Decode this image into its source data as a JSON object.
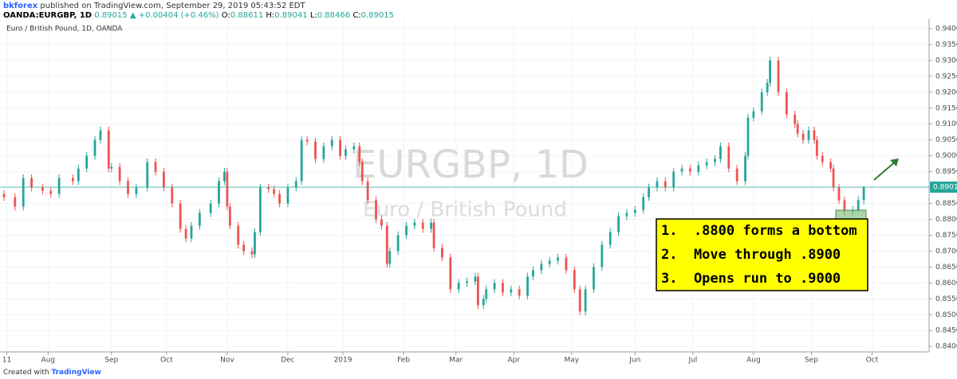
{
  "header": {
    "author": "bkforex",
    "published": "published on TradingView.com, September 29, 2019 05:43:52 EDT",
    "symbol": "OANDA:EURGBP, 1D",
    "change": "▲ +0.00404 (+0.46%)",
    "ohlc_labels": [
      "O:",
      "H:",
      "L:",
      "C:"
    ]
  },
  "footer": {
    "created": "Created with",
    "brand": "TradingView"
  },
  "chart_data": {
    "type": "candlestick",
    "title": "Euro / British Pound, 1D, OANDA",
    "watermark": "EURGBP, 1D",
    "watermark_subtitle": "Euro / British Pound",
    "annotation": [
      "1.  .8800 forms a bottom",
      "2.  Move through .8900",
      "3.  Opens run to .9000"
    ],
    "up_color": "#26a69a",
    "down_color": "#ef5350",
    "grid": true,
    "xlim": [
      -1.45,
      335.7
    ],
    "ylim": [
      0.8388,
      0.943
    ],
    "xticks": [
      {
        "value": 1,
        "label": "11"
      },
      {
        "value": 16,
        "label": "Aug"
      },
      {
        "value": 39,
        "label": "Sep"
      },
      {
        "value": 59,
        "label": "Oct"
      },
      {
        "value": 81,
        "label": "Nov"
      },
      {
        "value": 103,
        "label": "Dec"
      },
      {
        "value": 123,
        "label": "2019"
      },
      {
        "value": 145,
        "label": "Feb"
      },
      {
        "value": 164,
        "label": "Mar"
      },
      {
        "value": 185,
        "label": "Apr"
      },
      {
        "value": 206,
        "label": "May"
      },
      {
        "value": 229,
        "label": "Jun"
      },
      {
        "value": 250,
        "label": "Jul"
      },
      {
        "value": 272,
        "label": "Aug"
      },
      {
        "value": 293,
        "label": "Sep"
      },
      {
        "value": 315,
        "label": "Oct"
      }
    ],
    "yticks": [
      {
        "value": 0.84,
        "label": "0.84000"
      },
      {
        "value": 0.845,
        "label": "0.84500"
      },
      {
        "value": 0.85,
        "label": "0.85000"
      },
      {
        "value": 0.855,
        "label": "0.85500"
      },
      {
        "value": 0.86,
        "label": "0.86000"
      },
      {
        "value": 0.865,
        "label": "0.86500"
      },
      {
        "value": 0.87,
        "label": "0.87000"
      },
      {
        "value": 0.875,
        "label": "0.87500"
      },
      {
        "value": 0.88,
        "label": "0.88000"
      },
      {
        "value": 0.885,
        "label": "0.88500"
      },
      {
        "value": 0.89,
        "label": "0.89000"
      },
      {
        "value": 0.895,
        "label": "0.89500"
      },
      {
        "value": 0.9,
        "label": "0.90000"
      },
      {
        "value": 0.905,
        "label": "0.90500"
      },
      {
        "value": 0.91,
        "label": "0.91000"
      },
      {
        "value": 0.915,
        "label": "0.91500"
      },
      {
        "value": 0.92,
        "label": "0.92000"
      },
      {
        "value": 0.925,
        "label": "0.92500"
      },
      {
        "value": 0.93,
        "label": "0.93000"
      },
      {
        "value": 0.935,
        "label": "0.93500"
      },
      {
        "value": 0.94,
        "label": "0.94000"
      }
    ],
    "x": [
      0,
      4,
      7,
      10,
      14,
      17,
      20,
      25,
      27,
      30,
      33,
      35,
      38,
      39,
      42,
      45,
      48,
      52,
      55,
      58,
      61,
      64,
      66,
      68,
      71,
      75,
      78,
      80,
      81,
      82,
      85,
      87,
      90,
      91,
      93,
      96,
      98,
      100,
      103,
      106,
      108,
      110,
      113,
      116,
      119,
      122,
      124,
      127,
      129,
      130,
      132,
      135,
      137,
      139,
      140,
      143,
      146,
      149,
      152,
      155,
      156,
      159,
      162,
      165,
      168,
      171,
      172,
      174,
      175,
      178,
      181,
      184,
      187,
      190,
      192,
      195,
      198,
      201,
      204,
      207,
      209,
      211,
      214,
      217,
      220,
      223,
      226,
      229,
      232,
      234,
      237,
      240,
      243,
      246,
      249,
      252,
      255,
      258,
      260,
      263,
      266,
      269,
      270,
      272,
      275,
      277,
      278,
      281,
      284,
      287,
      288,
      290,
      292,
      294,
      295,
      297,
      300,
      301,
      303,
      305,
      308,
      310,
      312
    ],
    "open": [
      0.888,
      0.887,
      0.884,
      0.893,
      0.89,
      0.889,
      0.888,
      0.893,
      0.892,
      0.896,
      0.9,
      0.905,
      0.908,
      0.896,
      0.8965,
      0.892,
      0.888,
      0.89,
      0.898,
      0.895,
      0.89,
      0.885,
      0.877,
      0.874,
      0.878,
      0.882,
      0.885,
      0.892,
      0.895,
      0.884,
      0.878,
      0.872,
      0.87,
      0.869,
      0.876,
      0.89,
      0.8895,
      0.888,
      0.885,
      0.89,
      0.892,
      0.905,
      0.9045,
      0.899,
      0.903,
      0.905,
      0.9,
      0.902,
      0.903,
      0.898,
      0.892,
      0.886,
      0.88,
      0.878,
      0.866,
      0.87,
      0.875,
      0.878,
      0.879,
      0.877,
      0.879,
      0.871,
      0.868,
      0.858,
      0.86,
      0.8605,
      0.862,
      0.853,
      0.855,
      0.858,
      0.86,
      0.857,
      0.858,
      0.856,
      0.862,
      0.864,
      0.866,
      0.867,
      0.868,
      0.864,
      0.858,
      0.851,
      0.858,
      0.865,
      0.872,
      0.876,
      0.881,
      0.882,
      0.883,
      0.887,
      0.89,
      0.892,
      0.89,
      0.895,
      0.896,
      0.895,
      0.897,
      0.898,
      0.899,
      0.903,
      0.896,
      0.892,
      0.9,
      0.912,
      0.914,
      0.92,
      0.923,
      0.93,
      0.92,
      0.913,
      0.91,
      0.907,
      0.905,
      0.908,
      0.905,
      0.9,
      0.898,
      0.896,
      0.89,
      0.886,
      0.882,
      0.883,
      0.88611
    ],
    "high": [
      0.8892,
      0.8882,
      0.8942,
      0.8942,
      0.8912,
      0.8902,
      0.8942,
      0.8942,
      0.8972,
      0.9012,
      0.9062,
      0.9092,
      0.9092,
      0.8977,
      0.8977,
      0.8932,
      0.8912,
      0.8992,
      0.8992,
      0.8962,
      0.8912,
      0.8862,
      0.8782,
      0.8792,
      0.8832,
      0.8862,
      0.8932,
      0.8962,
      0.8962,
      0.8852,
      0.8792,
      0.8732,
      0.8712,
      0.8772,
      0.8912,
      0.8912,
      0.8907,
      0.8892,
      0.8912,
      0.8932,
      0.9062,
      0.9062,
      0.9057,
      0.9042,
      0.9062,
      0.9062,
      0.9032,
      0.9042,
      0.9042,
      0.8992,
      0.8932,
      0.8872,
      0.8812,
      0.8792,
      0.8712,
      0.8762,
      0.8792,
      0.8802,
      0.8802,
      0.8802,
      0.8802,
      0.8722,
      0.8692,
      0.8612,
      0.8617,
      0.8632,
      0.8632,
      0.8562,
      0.8592,
      0.8612,
      0.8612,
      0.8592,
      0.8592,
      0.8632,
      0.8652,
      0.8672,
      0.8682,
      0.8692,
      0.8692,
      0.8652,
      0.8592,
      0.8592,
      0.8662,
      0.8732,
      0.8772,
      0.8822,
      0.8832,
      0.8842,
      0.8882,
      0.8912,
      0.8932,
      0.8932,
      0.8962,
      0.8972,
      0.8972,
      0.8982,
      0.8992,
      0.9002,
      0.9042,
      0.9042,
      0.8972,
      0.9012,
      0.9132,
      0.9152,
      0.9212,
      0.9242,
      0.9312,
      0.9312,
      0.9212,
      0.9142,
      0.9112,
      0.9082,
      0.9092,
      0.9092,
      0.9062,
      0.9012,
      0.8992,
      0.8972,
      0.8912,
      0.8872,
      0.8842,
      0.8873,
      0.89041
    ],
    "low": [
      0.8858,
      0.8828,
      0.8828,
      0.8888,
      0.8878,
      0.8868,
      0.8868,
      0.8908,
      0.8908,
      0.8948,
      0.8988,
      0.9038,
      0.8948,
      0.8948,
      0.8908,
      0.8868,
      0.8868,
      0.8888,
      0.8938,
      0.8888,
      0.8838,
      0.8758,
      0.8728,
      0.8728,
      0.8768,
      0.8808,
      0.8838,
      0.8908,
      0.8828,
      0.8768,
      0.8708,
      0.8688,
      0.8678,
      0.8678,
      0.8748,
      0.8883,
      0.8868,
      0.8838,
      0.8838,
      0.8888,
      0.8908,
      0.9033,
      0.8978,
      0.8978,
      0.9018,
      0.8988,
      0.8988,
      0.9008,
      0.8968,
      0.8908,
      0.8848,
      0.8788,
      0.8768,
      0.8648,
      0.8648,
      0.8688,
      0.8738,
      0.8768,
      0.8758,
      0.8758,
      0.8698,
      0.8668,
      0.8568,
      0.8568,
      0.8588,
      0.8593,
      0.8518,
      0.8518,
      0.8538,
      0.8568,
      0.8558,
      0.8558,
      0.8548,
      0.8548,
      0.8608,
      0.8628,
      0.8648,
      0.8658,
      0.8628,
      0.8568,
      0.8498,
      0.8498,
      0.8568,
      0.8638,
      0.8708,
      0.8748,
      0.8798,
      0.8808,
      0.8818,
      0.8858,
      0.8888,
      0.8888,
      0.8888,
      0.8938,
      0.8938,
      0.8938,
      0.8958,
      0.8968,
      0.8978,
      0.8948,
      0.8908,
      0.8908,
      0.8988,
      0.9108,
      0.9128,
      0.9188,
      0.9218,
      0.9188,
      0.9118,
      0.9088,
      0.9058,
      0.9038,
      0.9038,
      0.9038,
      0.8988,
      0.8968,
      0.8948,
      0.8888,
      0.8848,
      0.8808,
      0.8808,
      0.8818,
      0.88466
    ],
    "close": [
      0.887,
      0.884,
      0.893,
      0.89,
      0.889,
      0.888,
      0.893,
      0.892,
      0.896,
      0.9,
      0.905,
      0.908,
      0.896,
      0.8965,
      0.892,
      0.888,
      0.89,
      0.898,
      0.895,
      0.89,
      0.885,
      0.877,
      0.874,
      0.878,
      0.882,
      0.885,
      0.892,
      0.895,
      0.884,
      0.878,
      0.872,
      0.87,
      0.869,
      0.876,
      0.89,
      0.8895,
      0.888,
      0.885,
      0.89,
      0.892,
      0.905,
      0.9045,
      0.899,
      0.903,
      0.905,
      0.9,
      0.902,
      0.903,
      0.898,
      0.892,
      0.886,
      0.88,
      0.878,
      0.866,
      0.87,
      0.875,
      0.878,
      0.879,
      0.877,
      0.879,
      0.871,
      0.868,
      0.858,
      0.86,
      0.8605,
      0.862,
      0.853,
      0.855,
      0.858,
      0.86,
      0.857,
      0.858,
      0.856,
      0.862,
      0.864,
      0.866,
      0.867,
      0.868,
      0.864,
      0.858,
      0.851,
      0.858,
      0.865,
      0.872,
      0.876,
      0.881,
      0.882,
      0.883,
      0.887,
      0.89,
      0.892,
      0.89,
      0.895,
      0.896,
      0.895,
      0.897,
      0.898,
      0.899,
      0.903,
      0.896,
      0.892,
      0.9,
      0.912,
      0.914,
      0.92,
      0.923,
      0.93,
      0.92,
      0.913,
      0.91,
      0.907,
      0.905,
      0.908,
      0.905,
      0.9,
      0.898,
      0.896,
      0.89,
      0.886,
      0.882,
      0.883,
      0.88611,
      0.89015
    ]
  }
}
